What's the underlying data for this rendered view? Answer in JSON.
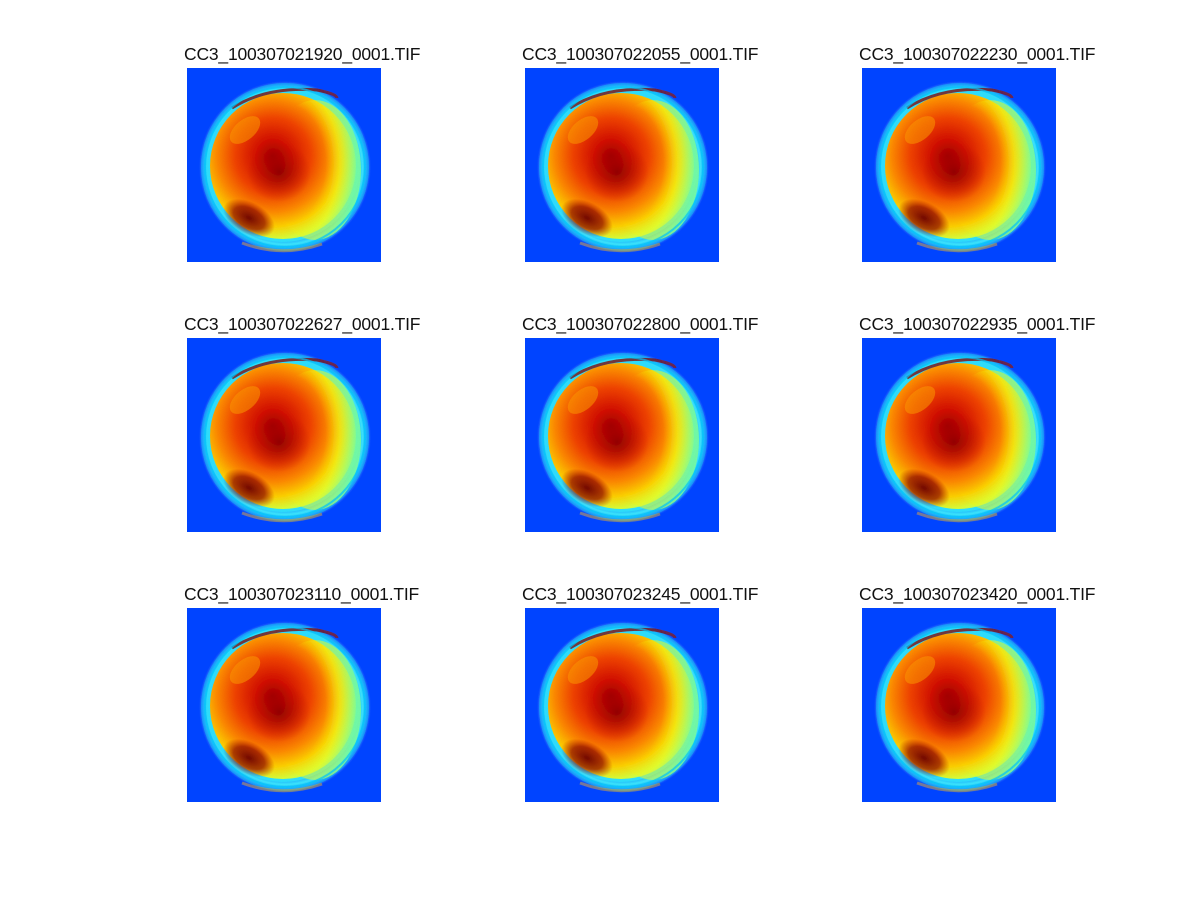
{
  "figure": {
    "colormap": "jet",
    "background_color": "#0044ff",
    "panels": [
      {
        "title": "CC3_100307021920_0001.TIF"
      },
      {
        "title": "CC3_100307022055_0001.TIF"
      },
      {
        "title": "CC3_100307022230_0001.TIF"
      },
      {
        "title": "CC3_100307022627_0001.TIF"
      },
      {
        "title": "CC3_100307022800_0001.TIF"
      },
      {
        "title": "CC3_100307022935_0001.TIF"
      },
      {
        "title": "CC3_100307023110_0001.TIF"
      },
      {
        "title": "CC3_100307023245_0001.TIF"
      },
      {
        "title": "CC3_100307023420_0001.TIF"
      }
    ]
  }
}
